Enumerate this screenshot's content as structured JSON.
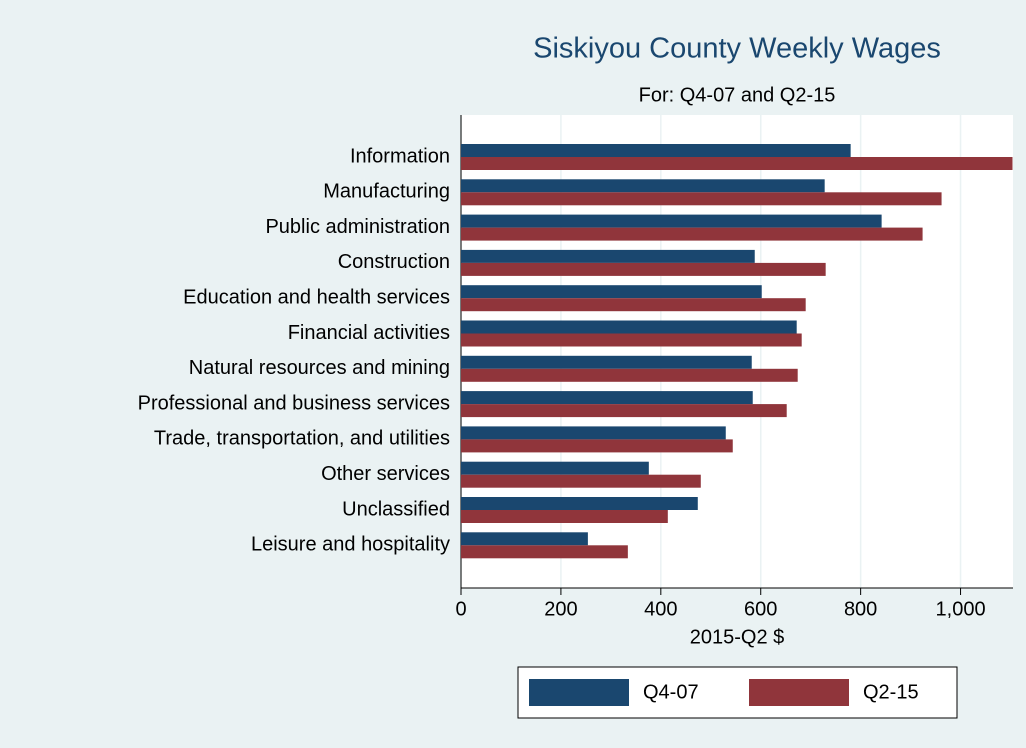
{
  "chart_data": {
    "type": "bar",
    "orientation": "horizontal",
    "title": "Siskiyou County Weekly Wages",
    "subtitle": "For: Q4-07 and Q2-15",
    "x_label": "2015-Q2 $",
    "categories": [
      "Information",
      "Manufacturing",
      "Public administration",
      "Construction",
      "Education and health services",
      "Financial activities",
      "Natural resources and mining",
      "Professional and business services",
      "Trade, transportation, and utilities",
      "Other services",
      "Unclassified",
      "Leisure and hospitality"
    ],
    "series": [
      {
        "name": "Q4-07",
        "color": "#1a476f",
        "values": [
          780,
          728,
          842,
          588,
          602,
          672,
          582,
          584,
          530,
          376,
          474,
          254
        ]
      },
      {
        "name": "Q2-15",
        "color": "#90353b",
        "values": [
          1104,
          962,
          924,
          730,
          690,
          682,
          674,
          652,
          544,
          480,
          414,
          334
        ]
      }
    ],
    "xlim": [
      0,
      1105
    ],
    "xticks": [
      0,
      200,
      400,
      600,
      800,
      {
        "value": 1000,
        "label": "1,000"
      }
    ],
    "grid": true,
    "legend": "bottom"
  }
}
